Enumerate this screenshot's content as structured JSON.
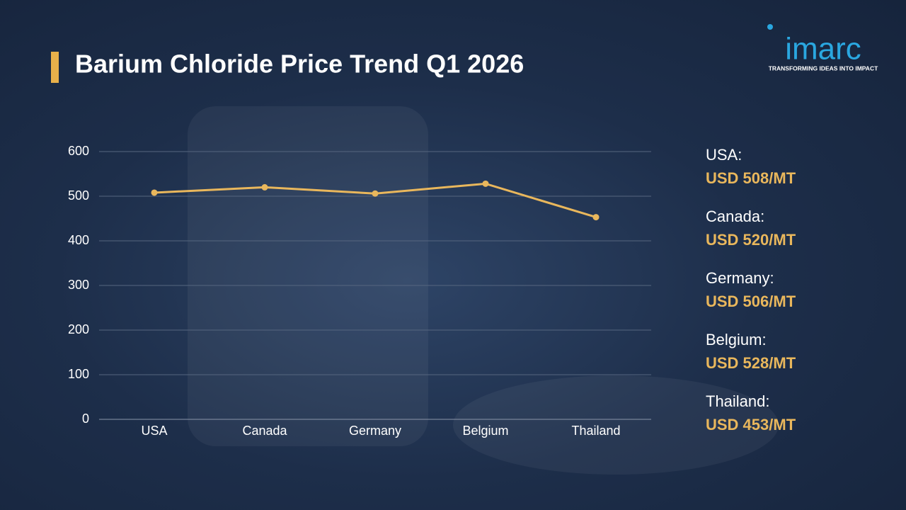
{
  "logo": {
    "name": "imarc",
    "tagline": "TRANSFORMING IDEAS INTO IMPACT"
  },
  "chart_data": {
    "type": "line",
    "title": "Barium Chloride Price Trend Q1 2026",
    "categories": [
      "USA",
      "Canada",
      "Germany",
      "Belgium",
      "Thailand"
    ],
    "series": [
      {
        "name": "Price",
        "color": "#e9b75c",
        "values": [
          508,
          520,
          506,
          528,
          453
        ],
        "value_labels": [
          "USD 508/MT",
          "USD 520/MT",
          "USD 506/MT",
          "USD 528/MT",
          "USD 453/MT"
        ]
      }
    ],
    "summary_labels": [
      "USA:",
      "Canada:",
      "Germany:",
      "Belgium:",
      "Thailand:"
    ],
    "ylim": [
      0,
      600
    ],
    "yticks": [
      0,
      100,
      200,
      300,
      400,
      500,
      600
    ],
    "grid": true
  }
}
